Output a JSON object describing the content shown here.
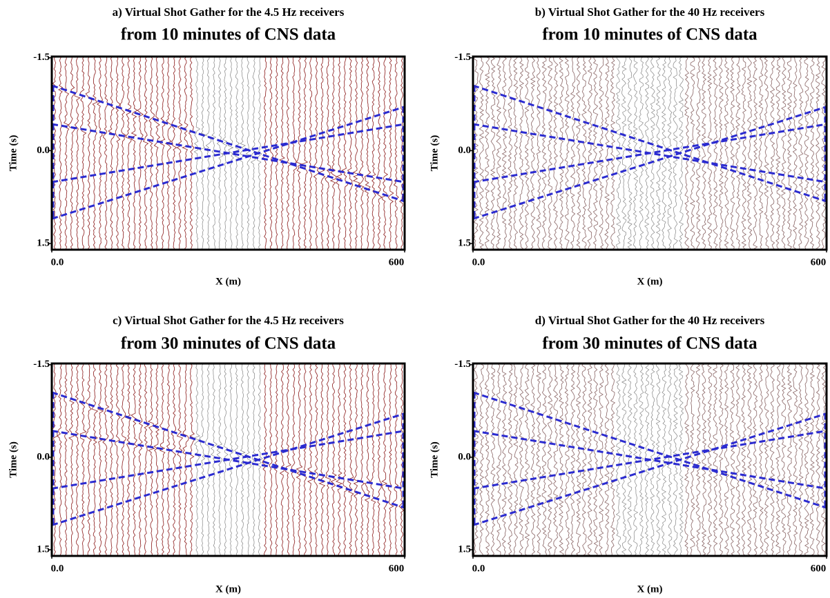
{
  "chart_data": [
    {
      "type": "seismic",
      "title": "a) Virtual  Shot Gather for the 4.5 Hz receivers",
      "subtitle": "from 10 minutes of CNS data",
      "ylabel": "Time (s)",
      "xlabel": "X (m)",
      "xlim": [
        0,
        600
      ],
      "ylim": [
        -1.52,
        1.6
      ],
      "xticks": [
        {
          "value": 0,
          "label": "0.0"
        },
        600
      ],
      "yticks": [
        -1.5,
        {
          "value": 0,
          "label": "0.0"
        },
        1.5
      ],
      "trace_color": "#8b1a1a",
      "overlay_color": "#2b2bd0"
    },
    {
      "type": "seismic",
      "title": "b) Virtual  Shot Gather for the 40 Hz receivers",
      "subtitle": "from 10 minutes of CNS data",
      "ylabel": "Time (s)",
      "xlabel": "X (m)",
      "xlim": [
        0,
        600
      ],
      "ylim": [
        -1.52,
        1.6
      ],
      "xticks": [
        {
          "value": 0,
          "label": "0.0"
        },
        600
      ],
      "yticks": [
        -1.5,
        {
          "value": 0,
          "label": "0.0"
        },
        1.5
      ],
      "trace_color": "#8a6565",
      "overlay_color": "#2b2bd0"
    },
    {
      "type": "seismic",
      "title": "c) Virtual  Shot Gather for the 4.5 Hz receivers",
      "subtitle": "from 30 minutes of CNS data",
      "ylabel": "Time (s)",
      "xlabel": "X (m)",
      "xlim": [
        0,
        600
      ],
      "ylim": [
        -1.52,
        1.6
      ],
      "xticks": [
        {
          "value": 0,
          "label": "0.0"
        },
        600
      ],
      "yticks": [
        -1.5,
        {
          "value": 0,
          "label": "0.0"
        },
        1.5
      ],
      "trace_color": "#8b1a1a",
      "overlay_color": "#2b2bd0"
    },
    {
      "type": "seismic",
      "title": "d) Virtual  Shot Gather for the 40 Hz receivers",
      "subtitle": "from 30 minutes of CNS data",
      "ylabel": "Time (s)",
      "xlabel": "X (m)",
      "xlim": [
        0,
        600
      ],
      "ylim": [
        -1.52,
        1.6
      ],
      "xticks": [
        {
          "value": 0,
          "label": "0.0"
        },
        600
      ],
      "yticks": [
        -1.5,
        {
          "value": 0,
          "label": "0.0"
        },
        1.5
      ],
      "trace_color": "#8a6565",
      "overlay_color": "#2b2bd0"
    }
  ]
}
